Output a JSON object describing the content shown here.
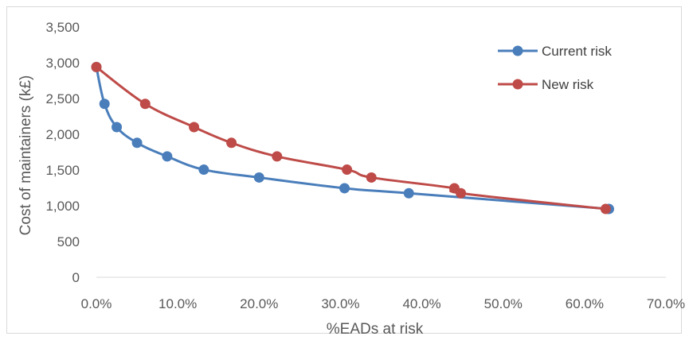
{
  "chart_data": {
    "type": "line",
    "title": "",
    "xlabel": "%EADs at risk",
    "ylabel": "Cost of maintainers (k£)",
    "xlim": [
      0,
      0.7
    ],
    "ylim": [
      0,
      3500
    ],
    "x_ticks": [
      "0.0%",
      "10.0%",
      "20.0%",
      "30.0%",
      "40.0%",
      "50.0%",
      "60.0%",
      "70.0%"
    ],
    "y_ticks": [
      "0",
      "500",
      "1,000",
      "1,500",
      "2,000",
      "2,500",
      "3,000",
      "3,500"
    ],
    "grid": false,
    "legend_position": "top-right",
    "series": [
      {
        "name": "Current risk",
        "color": "#4a7ebb",
        "x": [
          0.0,
          0.01,
          0.025,
          0.05,
          0.087,
          0.132,
          0.2,
          0.305,
          0.384,
          0.63
        ],
        "y": [
          2940,
          2425,
          2100,
          1880,
          1690,
          1505,
          1395,
          1245,
          1175,
          955
        ]
      },
      {
        "name": "New risk",
        "color": "#be4b48",
        "x": [
          0.0,
          0.06,
          0.12,
          0.166,
          0.222,
          0.308,
          0.338,
          0.44,
          0.448,
          0.626
        ],
        "y": [
          2940,
          2425,
          2100,
          1880,
          1690,
          1505,
          1395,
          1245,
          1175,
          955
        ]
      }
    ]
  }
}
